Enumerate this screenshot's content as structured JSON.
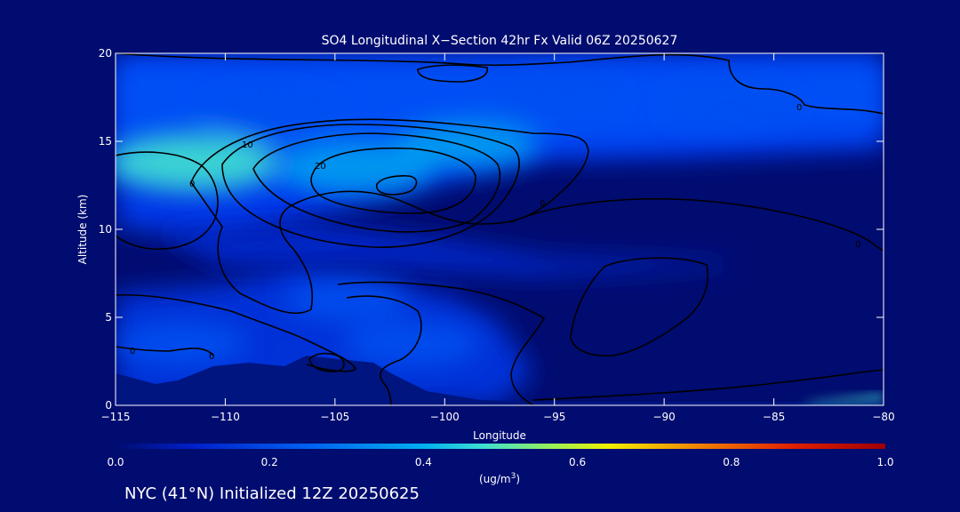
{
  "chart_data": {
    "type": "heatmap",
    "title": "SO4 Longitudinal X−Section 42hr  Fx Valid 06Z 20250627",
    "xlabel": "Longitude",
    "ylabel": "Altitude (km)",
    "xlim": [
      -115,
      -80
    ],
    "ylim": [
      0,
      20
    ],
    "x_ticks": [
      -115,
      -110,
      -105,
      -100,
      -95,
      -90,
      -85,
      -80
    ],
    "x_tick_labels": [
      "−115",
      "−110",
      "−105",
      "−100",
      "−95",
      "−90",
      "−85",
      "−80"
    ],
    "y_ticks": [
      0,
      5,
      10,
      15,
      20
    ],
    "y_tick_labels": [
      "0",
      "5",
      "10",
      "15",
      "20"
    ],
    "colorbar": {
      "label": "(ug/m",
      "label_sup": "3",
      "label_end": ")",
      "range": [
        0.0,
        1.0
      ],
      "ticks": [
        0.0,
        0.2,
        0.4,
        0.6,
        0.8,
        1.0
      ],
      "tick_labels": [
        "0.0",
        "0.2",
        "0.4",
        "0.6",
        "0.8",
        "1.0"
      ],
      "colors": [
        "#000c70",
        "#0020c8",
        "#0050f0",
        "#00a0f0",
        "#40e0d0",
        "#90f060",
        "#f0f000",
        "#f08000",
        "#e02000",
        "#a00000"
      ]
    },
    "contour_labels": [
      "0",
      "10",
      "20",
      "0",
      "0",
      "0",
      "0",
      "0"
    ],
    "field_blobs": [
      {
        "lon": -111.5,
        "alt": 13.8,
        "value": 0.45
      },
      {
        "lon": -104.0,
        "alt": 13.5,
        "value": 0.38
      },
      {
        "lon": -99.0,
        "alt": 14.8,
        "value": 0.28
      },
      {
        "lon": -108.0,
        "alt": 16.5,
        "value": 0.25
      },
      {
        "lon": -95.0,
        "alt": 17.5,
        "value": 0.22
      },
      {
        "lon": -87.0,
        "alt": 17.0,
        "value": 0.2
      },
      {
        "lon": -112.0,
        "alt": 3.5,
        "value": 0.22
      },
      {
        "lon": -101.5,
        "alt": 3.5,
        "value": 0.25
      },
      {
        "lon": -104.5,
        "alt": 6.0,
        "value": 0.18
      }
    ],
    "grid": false
  },
  "footer": {
    "caption": "NYC (41°N) Initialized 12Z 20250625"
  }
}
